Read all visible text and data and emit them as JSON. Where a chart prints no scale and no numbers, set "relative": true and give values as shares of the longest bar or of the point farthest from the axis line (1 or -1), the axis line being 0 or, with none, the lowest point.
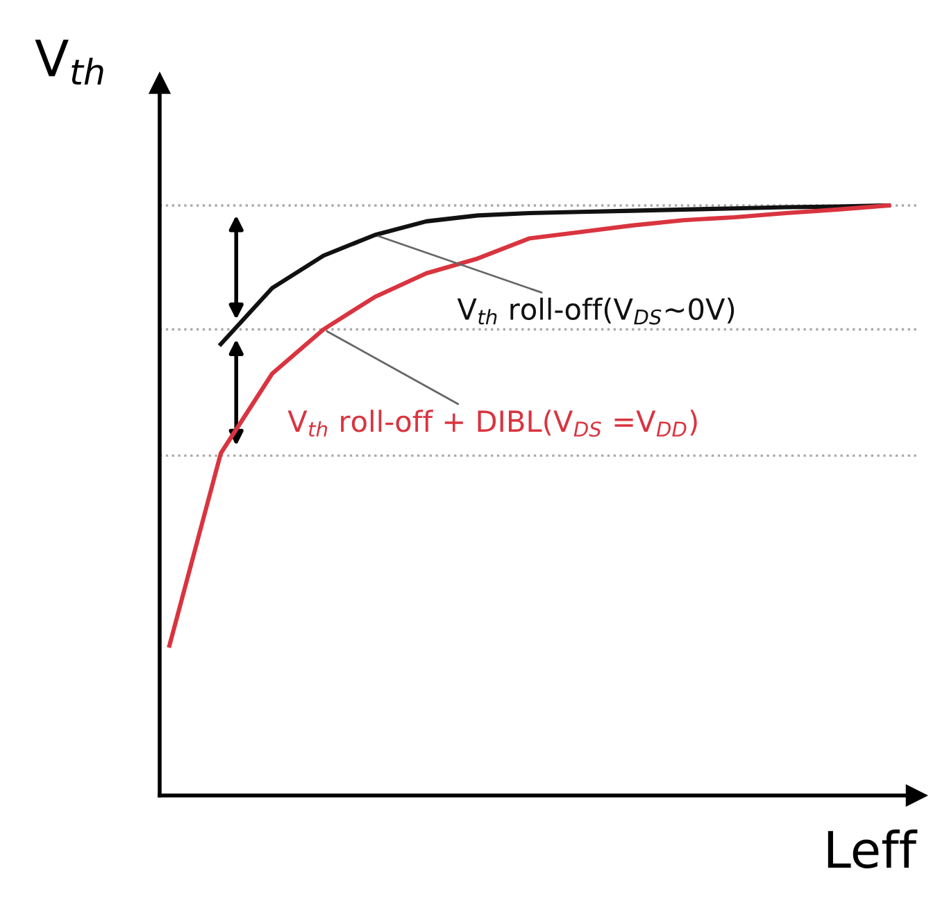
{
  "chart_data": {
    "type": "line",
    "relative": true,
    "xlabel": "Leff",
    "ylabel": "V$_{th}$",
    "categories": [
      null,
      null,
      null,
      null,
      null,
      null,
      null,
      null,
      null,
      null,
      null,
      null,
      null,
      null,
      null
    ],
    "series": [
      {
        "name": "V$_{th}$ roll-off(V$_{DS}$~0V)",
        "color": "#111111",
        "values": [
          null,
          0.765,
          0.86,
          0.915,
          0.95,
          0.973,
          0.983,
          0.987,
          0.989,
          0.991,
          0.993,
          0.995,
          0.997,
          0.998,
          1.0
        ]
      },
      {
        "name": "V$_{th}$ roll-off + DIBL(V$_{DS}$ =V$_{DD}$)",
        "color": "#d9343f",
        "values": [
          0.254,
          0.58,
          0.715,
          0.79,
          0.845,
          0.885,
          0.91,
          0.944,
          0.955,
          0.966,
          0.975,
          0.98,
          0.987,
          0.993,
          1.0
        ]
      }
    ],
    "ref_lines": [
      {
        "axis": "y",
        "value": 1.0,
        "color": "#aaaaaa",
        "line_style": "dotted"
      },
      {
        "axis": "y",
        "value": 0.79,
        "color": "#aaaaaa",
        "line_style": "dotted"
      },
      {
        "axis": "y",
        "value": 0.576,
        "color": "#aaaaaa",
        "line_style": "dotted"
      }
    ],
    "legend": false,
    "marker": "none",
    "line_style": "solid"
  }
}
